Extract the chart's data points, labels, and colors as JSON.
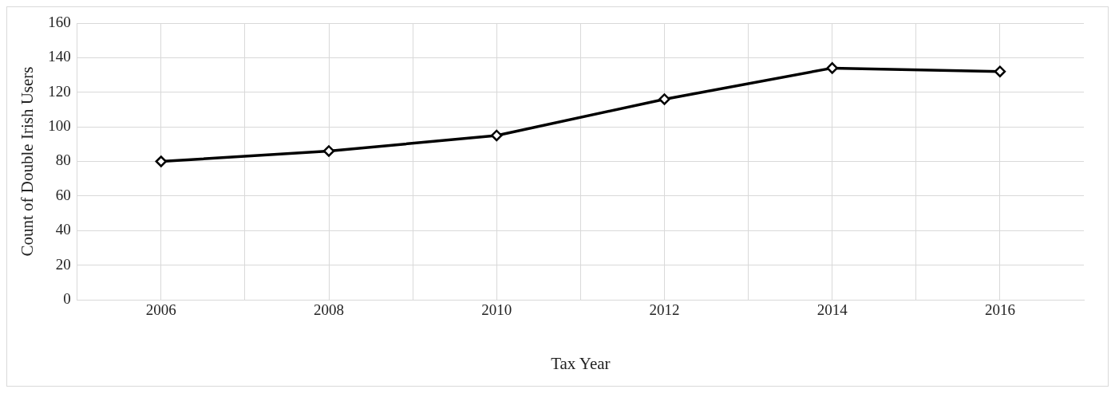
{
  "chart_data": {
    "type": "line",
    "xlabel": "Tax Year",
    "ylabel": "Count of Double Irish Users",
    "x": [
      2006,
      2008,
      2010,
      2012,
      2014,
      2016
    ],
    "series": [
      {
        "color": "#000000",
        "values": [
          80,
          86,
          95,
          116,
          134,
          132
        ]
      }
    ],
    "xlim": [
      2005,
      2017
    ],
    "xticks": [
      2006,
      {
        "value": 2007,
        "label": null
      },
      2008,
      {
        "value": 2009,
        "label": null
      },
      2010,
      {
        "value": 2011,
        "label": null
      },
      2012,
      {
        "value": 2013,
        "label": null
      },
      2014,
      {
        "value": 2015,
        "label": null
      },
      2016
    ],
    "ylim": [
      0,
      160
    ],
    "yticks": [
      0,
      20,
      40,
      60,
      80,
      100,
      120,
      140,
      160
    ],
    "grid": true,
    "legend": false,
    "marker": "diamond",
    "line_style": "solid"
  }
}
